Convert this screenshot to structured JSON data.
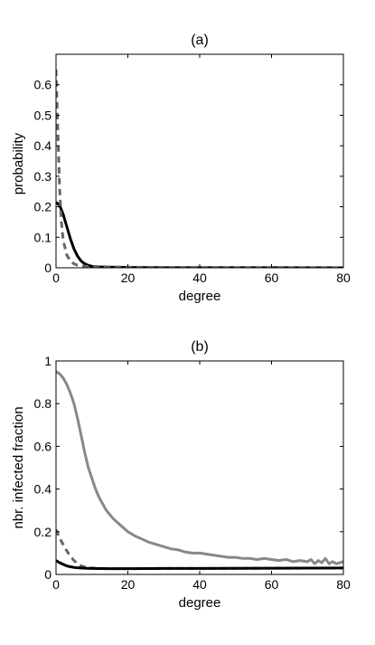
{
  "chart_data": [
    {
      "type": "line",
      "title": "(a)",
      "xlabel": "degree",
      "ylabel": "probability",
      "xlim": [
        0,
        80
      ],
      "ylim": [
        0,
        0.7
      ],
      "xticks": [
        0,
        20,
        40,
        60,
        80
      ],
      "yticks": [
        0,
        0.1,
        0.2,
        0.3,
        0.4,
        0.5,
        0.6
      ],
      "grid": false,
      "series": [
        {
          "style": "solid",
          "color": "#000000",
          "x": [
            0,
            1,
            2,
            3,
            4,
            5,
            6,
            7,
            8,
            9,
            10,
            12,
            15,
            20,
            30,
            40,
            60,
            80
          ],
          "y": [
            0.215,
            0.205,
            0.175,
            0.135,
            0.095,
            0.062,
            0.038,
            0.022,
            0.013,
            0.008,
            0.005,
            0.003,
            0.002,
            0.001,
            0.0005,
            0.0003,
            0.0002,
            0.0001
          ]
        },
        {
          "style": "dashed",
          "color": "#666666",
          "x": [
            0,
            0.5,
            1,
            1.5,
            2,
            3,
            4,
            5,
            6,
            8,
            10,
            15,
            20,
            30,
            40,
            60,
            80
          ],
          "y": [
            0.65,
            0.45,
            0.26,
            0.15,
            0.09,
            0.042,
            0.022,
            0.013,
            0.008,
            0.005,
            0.004,
            0.003,
            0.002,
            0.001,
            0.0006,
            0.0003,
            0.0002
          ]
        }
      ]
    },
    {
      "type": "line",
      "title": "(b)",
      "xlabel": "degree",
      "ylabel": "nbr. infected fraction",
      "xlim": [
        0,
        80
      ],
      "ylim": [
        0,
        1
      ],
      "xticks": [
        0,
        20,
        40,
        60,
        80
      ],
      "yticks": [
        0,
        0.2,
        0.4,
        0.6,
        0.8,
        1
      ],
      "grid": false,
      "series": [
        {
          "style": "solid",
          "color": "#888888",
          "x": [
            0,
            1,
            2,
            3,
            4,
            5,
            6,
            7,
            8,
            9,
            10,
            11,
            12,
            13,
            14,
            15,
            16,
            18,
            20,
            22,
            24,
            26,
            28,
            30,
            32,
            34,
            36,
            38,
            40,
            42,
            44,
            46,
            48,
            50,
            52,
            54,
            56,
            58,
            60,
            62,
            64,
            66,
            68,
            70,
            71,
            72,
            73,
            74,
            75,
            76,
            77,
            78,
            79,
            80
          ],
          "y": [
            0.95,
            0.94,
            0.92,
            0.89,
            0.85,
            0.8,
            0.73,
            0.65,
            0.57,
            0.5,
            0.45,
            0.4,
            0.36,
            0.33,
            0.3,
            0.28,
            0.26,
            0.23,
            0.2,
            0.18,
            0.165,
            0.15,
            0.14,
            0.13,
            0.12,
            0.115,
            0.105,
            0.1,
            0.1,
            0.095,
            0.09,
            0.085,
            0.08,
            0.08,
            0.075,
            0.075,
            0.07,
            0.075,
            0.07,
            0.065,
            0.07,
            0.06,
            0.065,
            0.06,
            0.07,
            0.05,
            0.065,
            0.055,
            0.075,
            0.05,
            0.06,
            0.05,
            0.055,
            0.06
          ]
        },
        {
          "style": "dashed",
          "color": "#666666",
          "x": [
            0,
            1,
            2,
            3,
            4,
            5,
            6,
            7,
            8,
            10,
            12,
            15,
            20,
            30,
            40,
            60,
            80
          ],
          "y": [
            0.21,
            0.17,
            0.14,
            0.11,
            0.085,
            0.065,
            0.05,
            0.04,
            0.035,
            0.03,
            0.028,
            0.027,
            0.027,
            0.028,
            0.028,
            0.029,
            0.03
          ]
        },
        {
          "style": "solid",
          "color": "#000000",
          "x": [
            0,
            1,
            2,
            3,
            4,
            5,
            6,
            8,
            10,
            15,
            20,
            30,
            40,
            60,
            80
          ],
          "y": [
            0.065,
            0.055,
            0.047,
            0.04,
            0.036,
            0.033,
            0.031,
            0.029,
            0.028,
            0.027,
            0.027,
            0.028,
            0.028,
            0.029,
            0.03
          ]
        }
      ]
    }
  ]
}
